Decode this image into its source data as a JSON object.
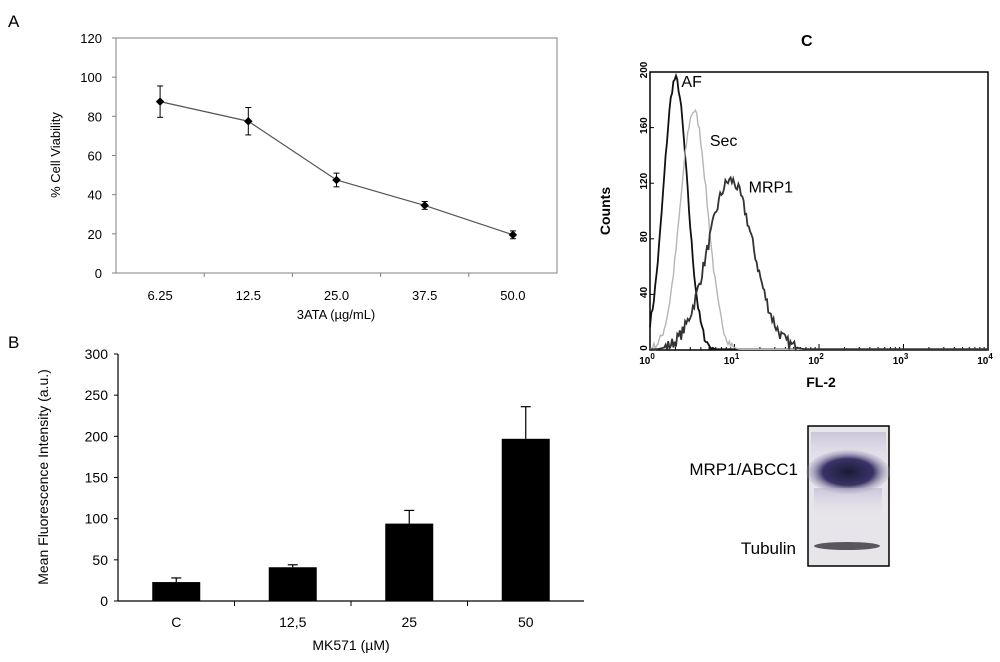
{
  "panel_labels": {
    "a": "A",
    "b": "B",
    "c": "C"
  },
  "chart_data": [
    {
      "type": "line",
      "panel": "A",
      "title": "",
      "xlabel": "3ATA (µg/mL)",
      "ylabel": "% Cell Viability",
      "categories": [
        "6.25",
        "12.5",
        "25.0",
        "37.5",
        "50.0"
      ],
      "values": [
        87.5,
        77.5,
        47.5,
        34.5,
        19.5
      ],
      "errors": [
        8,
        7,
        3.5,
        2,
        2
      ],
      "ylim": [
        0,
        120
      ],
      "yticks": [
        "0",
        "20",
        "40",
        "60",
        "80",
        "100",
        "120"
      ],
      "grid": false
    },
    {
      "type": "bar",
      "panel": "B",
      "title": "",
      "xlabel": "MK571 (µM)",
      "ylabel": "Mean Fluorescence Intensity (a.u.)",
      "categories": [
        "C",
        "12,5",
        "25",
        "50"
      ],
      "values": [
        23,
        41,
        94,
        197
      ],
      "errors": [
        5,
        3,
        16,
        39
      ],
      "ylim": [
        0,
        300
      ],
      "yticks": [
        "0",
        "50",
        "100",
        "150",
        "200",
        "250",
        "300"
      ],
      "grid": false
    },
    {
      "type": "line",
      "panel": "C",
      "title": "",
      "xlabel": "FL-2",
      "ylabel": "Counts",
      "xscale": "log",
      "xlim": [
        1,
        10000
      ],
      "ylim": [
        0,
        200
      ],
      "yticks": [
        "0",
        "40",
        "80",
        "120",
        "160",
        "200"
      ],
      "xticks": [
        {
          "base": "10",
          "exp": "0"
        },
        {
          "base": "10",
          "exp": "1"
        },
        {
          "base": "10",
          "exp": "2"
        },
        {
          "base": "10",
          "exp": "3"
        },
        {
          "base": "10",
          "exp": "4"
        }
      ],
      "series": [
        {
          "name": "AF",
          "color": "#111111",
          "peak_x": 2.0,
          "peak_y": 195,
          "sigma_decades": 0.14
        },
        {
          "name": "Sec",
          "color": "#b5b5b5",
          "peak_x": 3.3,
          "peak_y": 172,
          "sigma_decades": 0.16
        },
        {
          "name": "MRP1",
          "color": "#333333",
          "peak_x": 9.0,
          "peak_y": 122,
          "sigma_decades": 0.27
        }
      ]
    }
  ],
  "western_blot": {
    "band_labels": [
      "MRP1/ABCC1",
      "Tubulin"
    ]
  }
}
